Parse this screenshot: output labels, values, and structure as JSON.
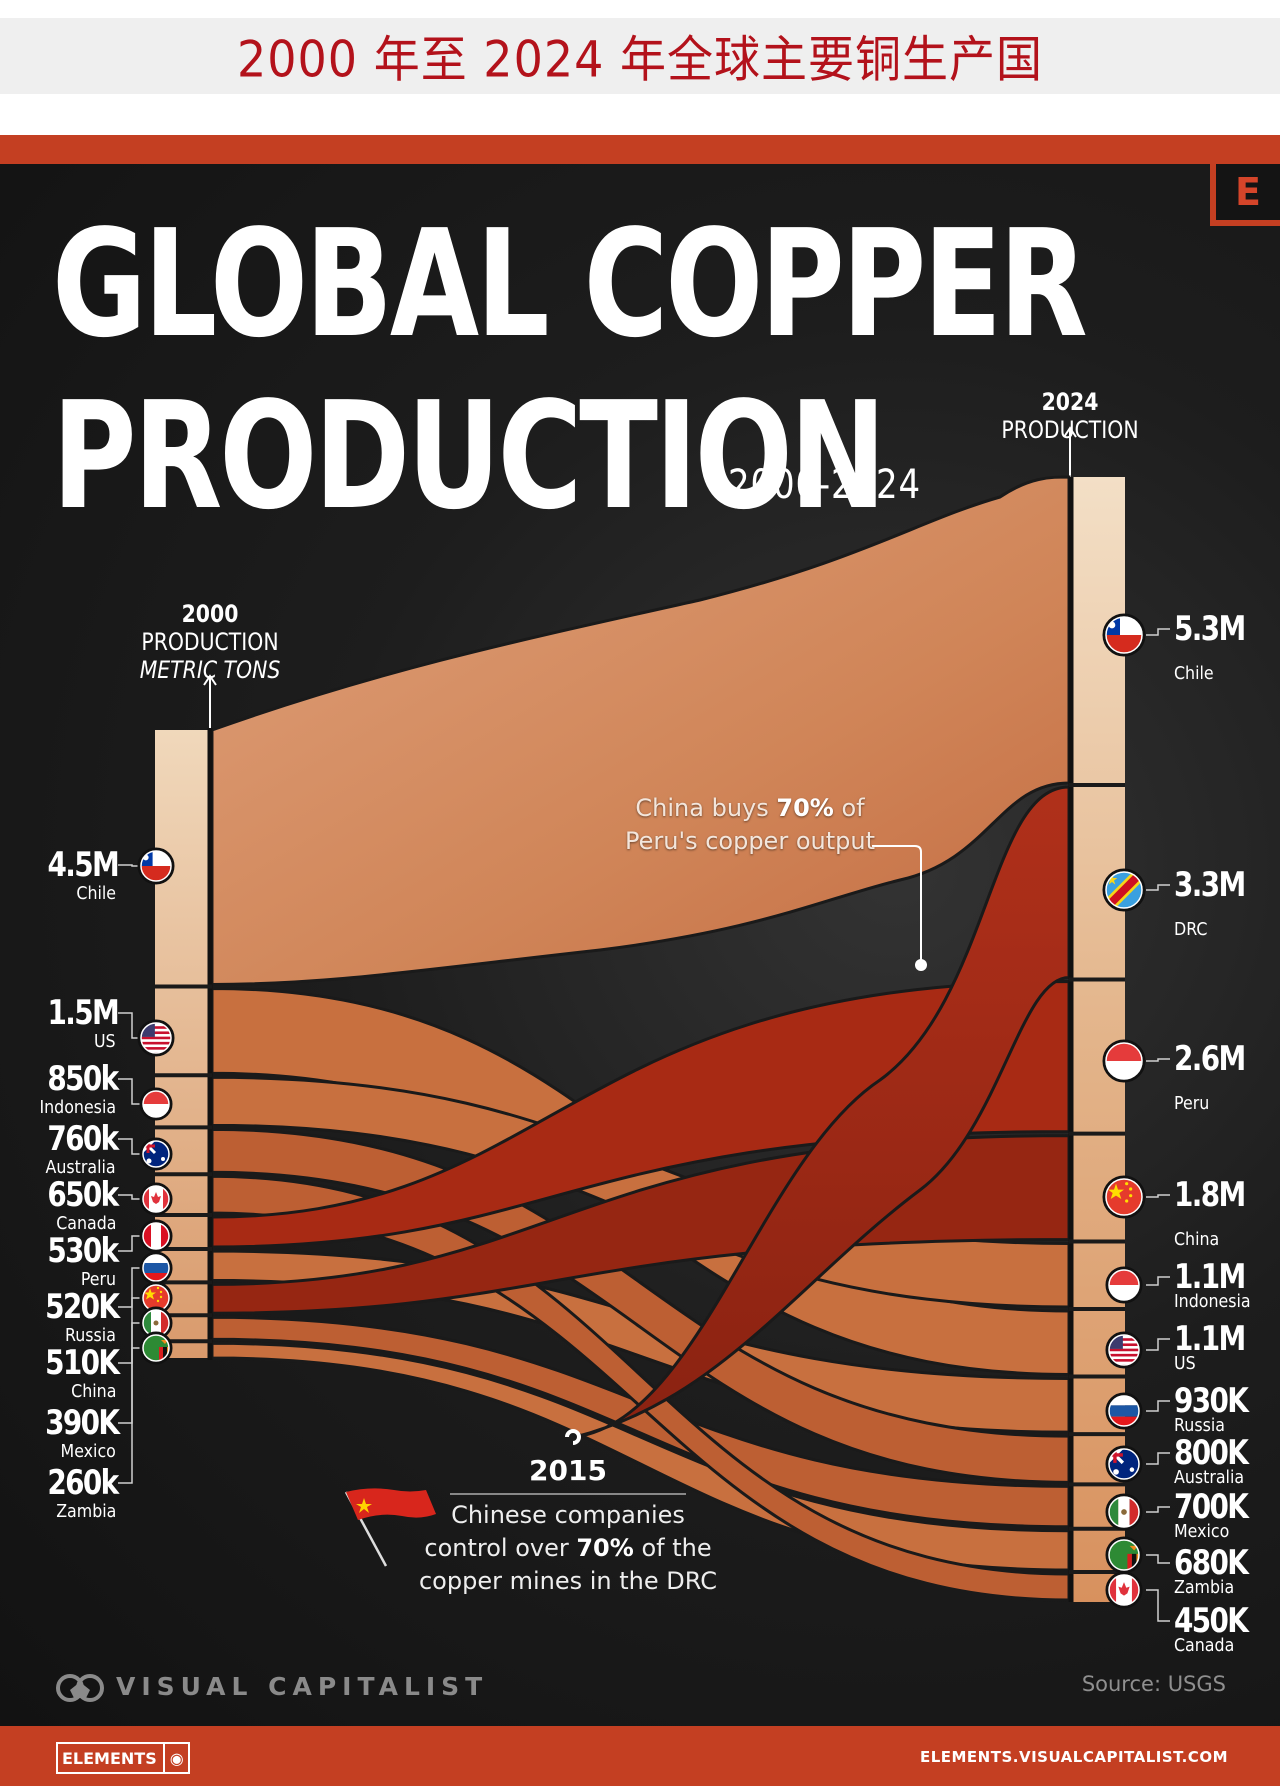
{
  "header": {
    "title": "2000 年至 2024 年全球主要铜生产国"
  },
  "infographic": {
    "title_line1": "GLOBAL COPPER",
    "title_line2": "PRODUCTION",
    "subtitle": "2000-2024",
    "logo_letter": "E",
    "left_axis": {
      "bold": "2000",
      "rest": " PRODUCTION",
      "units": "METRIC TONS"
    },
    "right_axis": {
      "bold": "2024",
      "rest": " PRODUCTION"
    },
    "annotation_peru": {
      "pre": "China buys ",
      "bold": "70%",
      "post": " of",
      "line2": "Peru's copper output"
    },
    "annotation_drc": {
      "year": "2015",
      "line1": "Chinese companies",
      "line2_pre": "control over ",
      "line2_bold": "70%",
      "line2_post": " of the",
      "line3": "copper mines in the DRC"
    },
    "brand": "VISUAL CAPITALIST",
    "source": "Source: USGS",
    "elements_badge": "ELEMENTS",
    "elements_url": "ELEMENTS.VISUALCAPITALIST.COM"
  },
  "colors": {
    "header_red": "#b3121b",
    "band_red": "#c43f22",
    "chile": "#d98a5f",
    "china_buy": "#a82a14",
    "drc": "#8f2412",
    "mid_copper": "#c2653a",
    "bar_light": "#edcfac"
  },
  "chart_data": {
    "type": "sankey-bump",
    "title": "Global Copper Production",
    "subtitle": "2000-2024",
    "units": "metric tons",
    "source": "USGS",
    "x": [
      "2000",
      "2024"
    ],
    "production_2000": [
      {
        "country": "Chile",
        "label": "4.5M",
        "value": 4500000,
        "flag": "chile"
      },
      {
        "country": "US",
        "label": "1.5M",
        "value": 1500000,
        "flag": "us"
      },
      {
        "country": "Indonesia",
        "label": "850k",
        "value": 850000,
        "flag": "indonesia"
      },
      {
        "country": "Australia",
        "label": "760k",
        "value": 760000,
        "flag": "australia"
      },
      {
        "country": "Canada",
        "label": "650k",
        "value": 650000,
        "flag": "canada"
      },
      {
        "country": "Peru",
        "label": "530k",
        "value": 530000,
        "flag": "peru"
      },
      {
        "country": "Russia",
        "label": "520K",
        "value": 520000,
        "flag": "russia"
      },
      {
        "country": "China",
        "label": "510K",
        "value": 510000,
        "flag": "china"
      },
      {
        "country": "Mexico",
        "label": "390K",
        "value": 390000,
        "flag": "mexico"
      },
      {
        "country": "Zambia",
        "label": "260k",
        "value": 260000,
        "flag": "zambia"
      }
    ],
    "production_2024": [
      {
        "country": "Chile",
        "label": "5.3M",
        "value": 5300000,
        "flag": "chile"
      },
      {
        "country": "DRC",
        "label": "3.3M",
        "value": 3300000,
        "flag": "drc"
      },
      {
        "country": "Peru",
        "label": "2.6M",
        "value": 2600000,
        "flag": "indonesia"
      },
      {
        "country": "China",
        "label": "1.8M",
        "value": 1800000,
        "flag": "china"
      },
      {
        "country": "Indonesia",
        "label": "1.1M",
        "value": 1100000,
        "flag": "indonesia"
      },
      {
        "country": "US",
        "label": "1.1M",
        "value": 1100000,
        "flag": "us"
      },
      {
        "country": "Russia",
        "label": "930K",
        "value": 930000,
        "flag": "russia"
      },
      {
        "country": "Australia",
        "label": "800K",
        "value": 800000,
        "flag": "australia"
      },
      {
        "country": "Mexico",
        "label": "700K",
        "value": 700000,
        "flag": "mexico"
      },
      {
        "country": "Zambia",
        "label": "680K",
        "value": 680000,
        "flag": "zambia"
      },
      {
        "country": "Canada",
        "label": "450K",
        "value": 450000,
        "flag": "canada"
      }
    ],
    "annotations": [
      {
        "text": "China buys 70% of Peru's copper output"
      },
      {
        "year": "2015",
        "text": "Chinese companies control over 70% of the copper mines in the DRC"
      }
    ]
  }
}
